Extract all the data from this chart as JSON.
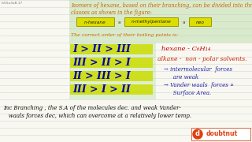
{
  "bg_color": "#f0f0e8",
  "green_bg_top": "#d4e8c4",
  "green_bg_options": "#d8eccc",
  "yellow_highlight": "#e8e840",
  "title_text": "Isomers of hexane, based on their branching, can be divided into three distinct\nclasses as shown in the figure:",
  "title_color": "#cc6600",
  "title_fontsize": 4.8,
  "box1_label": "n-hexane",
  "box2_label": "n-methylpentane",
  "box3_label": "neo",
  "box_color": "#dddd00",
  "box_border": "#999900",
  "correct_order_text": "The correct order of their boiling points is:",
  "correct_order_color": "#cc6600",
  "options": [
    "I > II > III",
    "III > II > I",
    "II > III > I",
    "III > I > II"
  ],
  "option_highlight": "#ccdd00",
  "right_line1": "hexane - C₆H₁₄",
  "right_line2": "alkane -  non - polar solvents.",
  "right_line3": "→ intermolecular  forces",
  "right_line4": "   are weak",
  "right_line5": "→ Vander waals  forces ∝",
  "right_line6": "   Surface Area.",
  "bottom_text1": "Inc Branching , the S.A of the molecules dec. and weak Vander-",
  "bottom_text2": "   waals forces dec, which can overcome at a relatively lower temp.",
  "watermark": "doubtnut",
  "watermark_bg": "#e04010",
  "notebook_line_color": "#c0c8d8",
  "left_label": "lo55o3o8.17",
  "page_bg": "#f8f8f0"
}
